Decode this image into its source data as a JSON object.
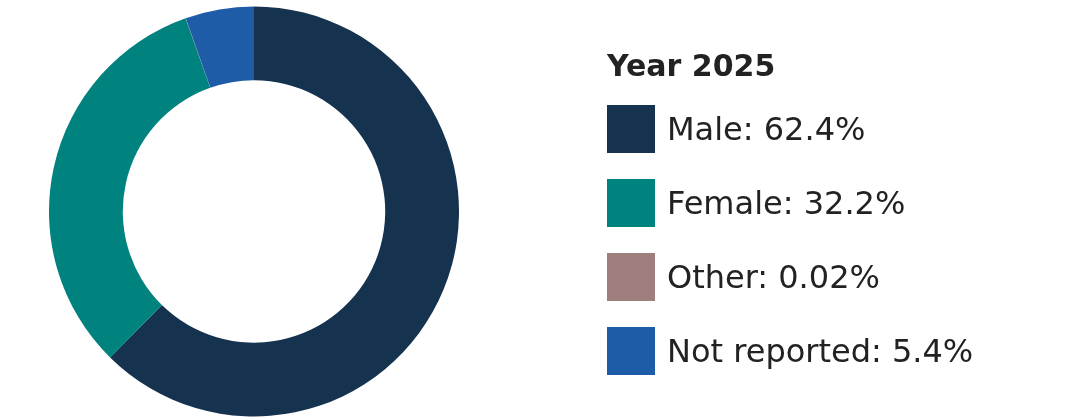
{
  "chart_data": {
    "type": "donut",
    "legend_title": "Year 2025",
    "legend": "right",
    "categories": [
      "Male",
      "Female",
      "Other",
      "Not reported"
    ],
    "values": [
      62.4,
      32.2,
      0.02,
      5.4
    ],
    "value_labels": [
      "62.4%",
      "32.2%",
      "0.02%",
      "5.4%"
    ],
    "colors": [
      "#15324f",
      "#00827f",
      "#9e7f7e",
      "#1f5ca8"
    ]
  }
}
